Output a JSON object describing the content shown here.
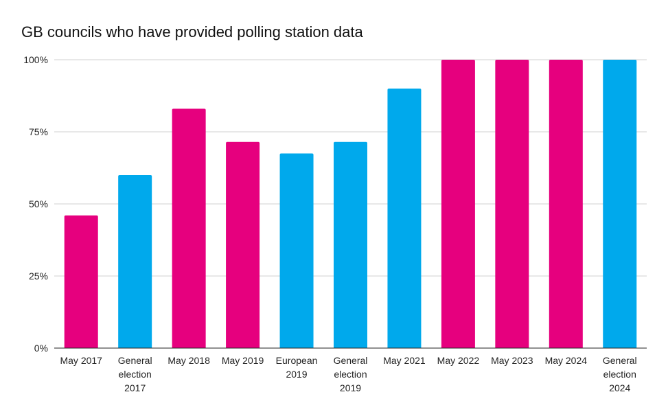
{
  "chart_data": {
    "type": "bar",
    "title": "GB councils who have provided polling station data",
    "categories": [
      [
        "May 2017"
      ],
      [
        "General",
        "election",
        "2017"
      ],
      [
        "May 2018"
      ],
      [
        "May 2019"
      ],
      [
        "European",
        "2019"
      ],
      [
        "General",
        "election",
        "2019"
      ],
      [
        "May 2021"
      ],
      [
        "May 2022"
      ],
      [
        "May 2023"
      ],
      [
        "May 2024"
      ],
      [
        "General",
        "election",
        "2024"
      ]
    ],
    "values": [
      46,
      60,
      83,
      71.5,
      67.5,
      71.5,
      90,
      100,
      100,
      100,
      100
    ],
    "bar_colors": [
      "#e6007e",
      "#00a9ec",
      "#e6007e",
      "#e6007e",
      "#00a9ec",
      "#00a9ec",
      "#00a9ec",
      "#e6007e",
      "#e6007e",
      "#e6007e",
      "#00a9ec"
    ],
    "ylim": [
      0,
      100
    ],
    "yticks": [
      0,
      25,
      50,
      75,
      100
    ],
    "ytick_labels": [
      "0%",
      "25%",
      "50%",
      "75%",
      "100%"
    ],
    "grid": true,
    "legend": "none"
  }
}
